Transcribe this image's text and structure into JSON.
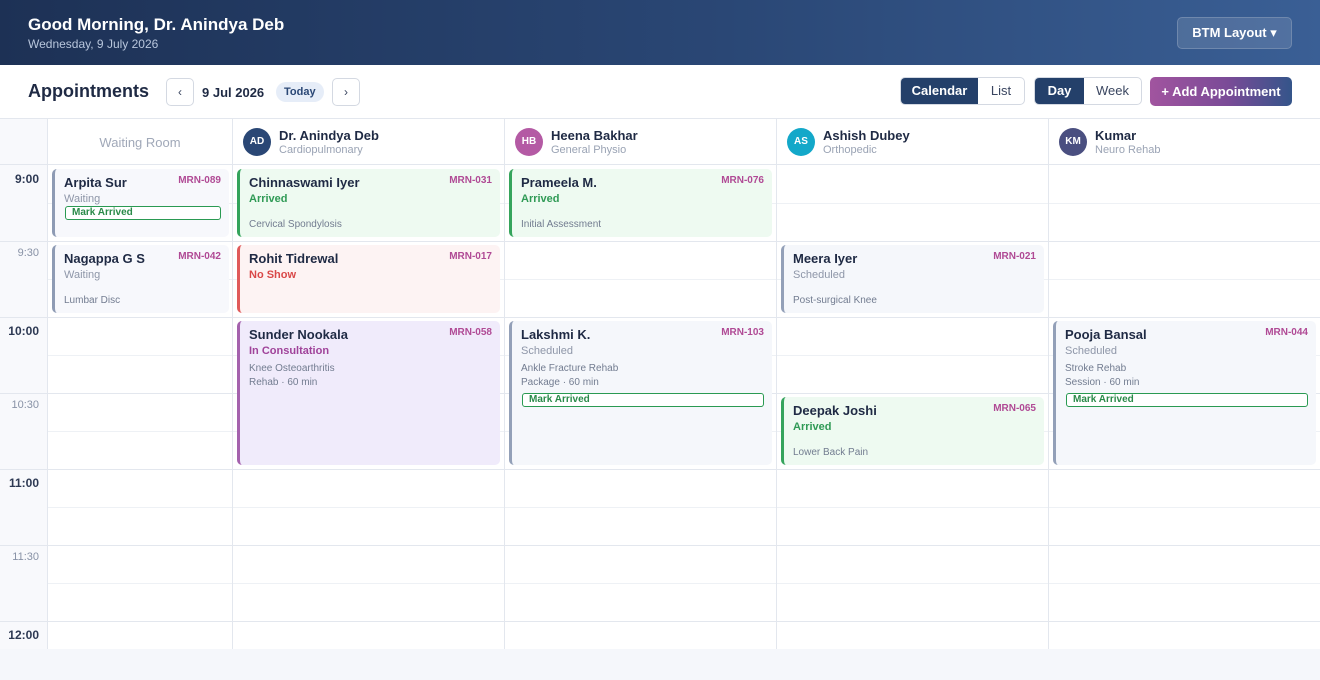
{
  "header": {
    "greeting": "Good Morning, Dr. Anindya Deb",
    "date": "Wednesday, 9 July 2026",
    "layout_button": "BTM Layout ▾"
  },
  "toolbar": {
    "title": "Appointments",
    "prev": "‹",
    "next": "›",
    "current_date": "9 Jul 2026",
    "today": "Today",
    "view_toggle": [
      "Calendar",
      "List"
    ],
    "view_active": "Calendar",
    "range_toggle": [
      "Day",
      "Week"
    ],
    "range_active": "Day",
    "add_button": "+ Add Appointment"
  },
  "calendar": {
    "waiting_room_label": "Waiting Room",
    "time_labels": [
      "9:00",
      "9:30",
      "10:00",
      "10:30",
      "11:00",
      "11:30",
      "12:00"
    ],
    "providers": [
      {
        "initials": "AD",
        "name": "Dr. Anindya Deb",
        "specialty": "Cardiopulmonary",
        "color": "#2a4775"
      },
      {
        "initials": "HB",
        "name": "Heena Bakhar",
        "specialty": "General Physio",
        "color": "#b45aa4"
      },
      {
        "initials": "AS",
        "name": "Ashish Dubey",
        "specialty": "Orthopedic",
        "color": "#13a8c9"
      },
      {
        "initials": "KM",
        "name": "Kumar",
        "specialty": "Neuro Rehab",
        "color": "#4a4f80"
      }
    ],
    "waiting": [
      {
        "name": "Arpita Sur",
        "mrn": "MRN-089",
        "status": "Waiting",
        "action": "Mark Arrived"
      },
      {
        "name": "Nagappa G S",
        "mrn": "MRN-042",
        "status": "Waiting",
        "note": "Lumbar Disc"
      }
    ],
    "appointments": {
      "ad": [
        {
          "name": "Chinnaswami Iyer",
          "mrn": "MRN-031",
          "status": "Arrived",
          "note": "Cervical Spondylosis"
        },
        {
          "name": "Rohit Tidrewal",
          "mrn": "MRN-017",
          "status": "No Show"
        },
        {
          "name": "Sunder Nookala",
          "mrn": "MRN-058",
          "status": "In Consultation",
          "note1": "Knee Osteoarthritis",
          "note2": "Rehab · 60 min"
        }
      ],
      "hb": [
        {
          "name": "Prameela M.",
          "mrn": "MRN-076",
          "status": "Arrived",
          "note": "Initial Assessment"
        },
        {
          "name": "Lakshmi K.",
          "mrn": "MRN-103",
          "status": "Scheduled",
          "note1": "Ankle Fracture Rehab",
          "note2": "Package · 60 min",
          "action": "Mark Arrived"
        }
      ],
      "as": [
        {
          "name": "Meera Iyer",
          "mrn": "MRN-021",
          "status": "Scheduled",
          "note": "Post-surgical Knee"
        },
        {
          "name": "Deepak Joshi",
          "mrn": "MRN-065",
          "status": "Arrived",
          "note": "Lower Back Pain"
        }
      ],
      "km": [
        {
          "name": "Pooja Bansal",
          "mrn": "MRN-044",
          "status": "Scheduled",
          "note1": "Stroke Rehab",
          "note2": "Session · 60 min",
          "action": "Mark Arrived"
        }
      ]
    }
  }
}
